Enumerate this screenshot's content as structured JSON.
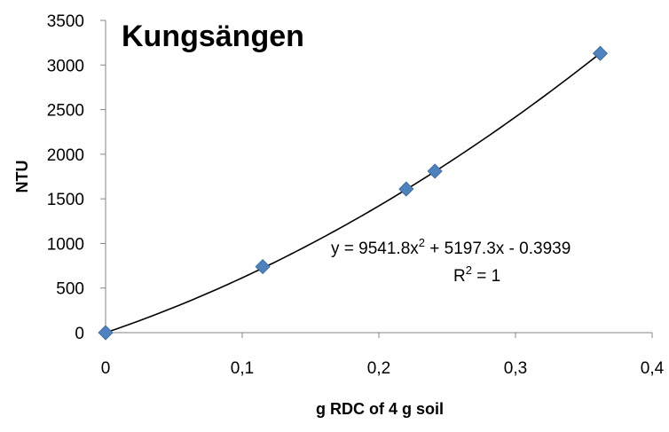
{
  "chart_data": {
    "type": "scatter",
    "title": "Kungsängen",
    "xlabel": "g RDC of 4 g soil",
    "ylabel": "NTU",
    "xlim": [
      0,
      0.4
    ],
    "ylim": [
      0,
      3500
    ],
    "x_ticks": [
      "0",
      "0,1",
      "0,2",
      "0,3",
      "0,4"
    ],
    "x_tick_values": [
      0,
      0.1,
      0.2,
      0.3,
      0.4
    ],
    "y_ticks": [
      "0",
      "500",
      "1000",
      "1500",
      "2000",
      "2500",
      "3000",
      "3500"
    ],
    "y_tick_values": [
      0,
      500,
      1000,
      1500,
      2000,
      2500,
      3000,
      3500
    ],
    "grid": false,
    "points": [
      {
        "x": 0,
        "y": 0
      },
      {
        "x": 0.115,
        "y": 740
      },
      {
        "x": 0.22,
        "y": 1610
      },
      {
        "x": 0.241,
        "y": 1810
      },
      {
        "x": 0.362,
        "y": 3130
      }
    ],
    "trendline": {
      "type": "polynomial",
      "coefficients": [
        9541.8,
        5197.3,
        -0.3939
      ],
      "x_range": [
        0,
        0.362
      ],
      "equation": {
        "base": "y = 9541.8x",
        "exponent": "2",
        "rest": " + 5197.3x - 0.3939"
      },
      "r2": {
        "base": "R",
        "exponent": "2",
        "rest": " = 1"
      }
    },
    "marker_color": "#4F81BD",
    "line_color": "#000000"
  }
}
